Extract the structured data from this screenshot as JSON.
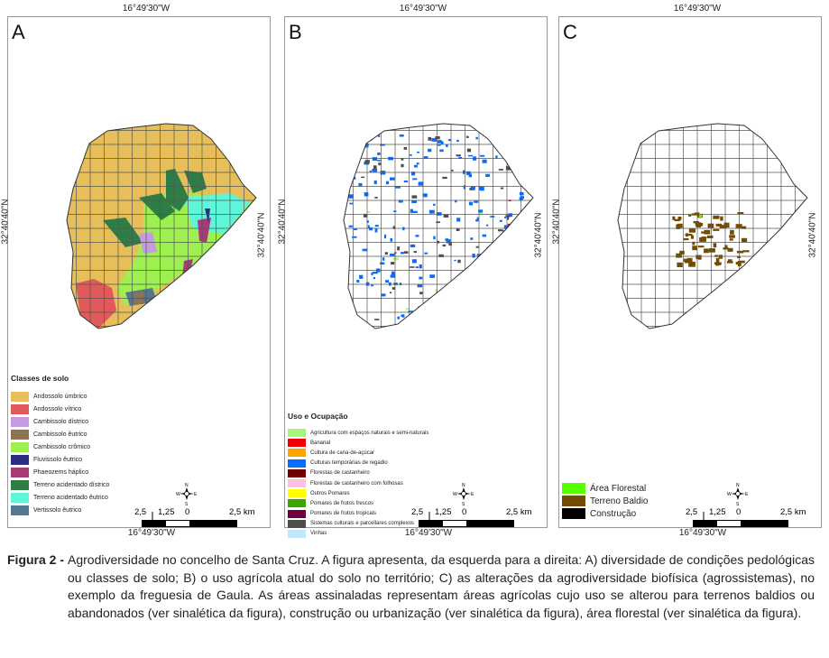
{
  "coords": {
    "lon": "16°49'30\"W",
    "lat": "32°40'40\"N"
  },
  "panels": [
    {
      "letter": "A",
      "legend_title": "Classes de solo",
      "items": [
        {
          "label": "Andossolo úmbrico",
          "color": "#e6bf5a"
        },
        {
          "label": "Andossolo vítrico",
          "color": "#e05a5a"
        },
        {
          "label": "Cambissolo dístrico",
          "color": "#c49ae0"
        },
        {
          "label": "Cambissolo êutrico",
          "color": "#8c7355"
        },
        {
          "label": "Cambissolo crômico",
          "color": "#9ef050"
        },
        {
          "label": "Fluvissolo êutrico",
          "color": "#2e2e80"
        },
        {
          "label": "Phaeozems háplico",
          "color": "#a83a78"
        },
        {
          "label": "Terreno acidentado dístrico",
          "color": "#2e7d45"
        },
        {
          "label": "Terreno acidentado êutrico",
          "color": "#5ff5d8"
        },
        {
          "label": "Vertissolo êutrico",
          "color": "#557890"
        }
      ]
    },
    {
      "letter": "B",
      "legend_title": "Uso e Ocupação",
      "items": [
        {
          "label": "Agricultura com espaços naturais e semi-naturais",
          "color": "#a6f57a"
        },
        {
          "label": "Bananal",
          "color": "#f00000"
        },
        {
          "label": "Cultura de cana-de-açúcar",
          "color": "#ffa500"
        },
        {
          "label": "Culturas temporárias de regadio",
          "color": "#0a6cff"
        },
        {
          "label": "Florestas de castanheiro",
          "color": "#700000"
        },
        {
          "label": "Florestas de castanheiro com folhosas",
          "color": "#ffbfe6"
        },
        {
          "label": "Outros Pomares",
          "color": "#ffff00"
        },
        {
          "label": "Pomares de frutos frescos",
          "color": "#38a800"
        },
        {
          "label": "Pomares de frutos tropicais",
          "color": "#6e0040"
        },
        {
          "label": "Sistemas culturais e parcellares complexos",
          "color": "#4e4e4e"
        },
        {
          "label": "Vinhas",
          "color": "#bee8ff"
        }
      ]
    },
    {
      "letter": "C",
      "legend_title": "",
      "items": [
        {
          "label": "Área Florestal",
          "color": "#55ff00"
        },
        {
          "label": "Terreno Baldio",
          "color": "#734c00"
        },
        {
          "label": "Construção",
          "color": "#000000"
        }
      ]
    }
  ],
  "scale": {
    "t1": "2,5",
    "t2": "1,25",
    "t3": "0",
    "t4": "2,5 km"
  },
  "compass": {
    "n": "N",
    "s": "S",
    "e": "E",
    "w": "W"
  },
  "caption": {
    "label": "Figura 2 -",
    "text": "Agrodiversidade no concelho de Santa Cruz. A figura apresenta, da esquerda para a direita: A) diversidade de condições pedológicas ou classes de solo; B) o uso agrícola atual do solo no território; C) as alterações da agrodiversidade biofísica (agrossistemas), no exemplo da freguesia de Gaula. As áreas assinaladas representam áreas agrícolas cujo uso se alterou para terrenos baldios ou abandonados (ver sinalética da figura), construção ou urbanização (ver sinalética da figura), área florestal (ver sinalética da figura)."
  }
}
